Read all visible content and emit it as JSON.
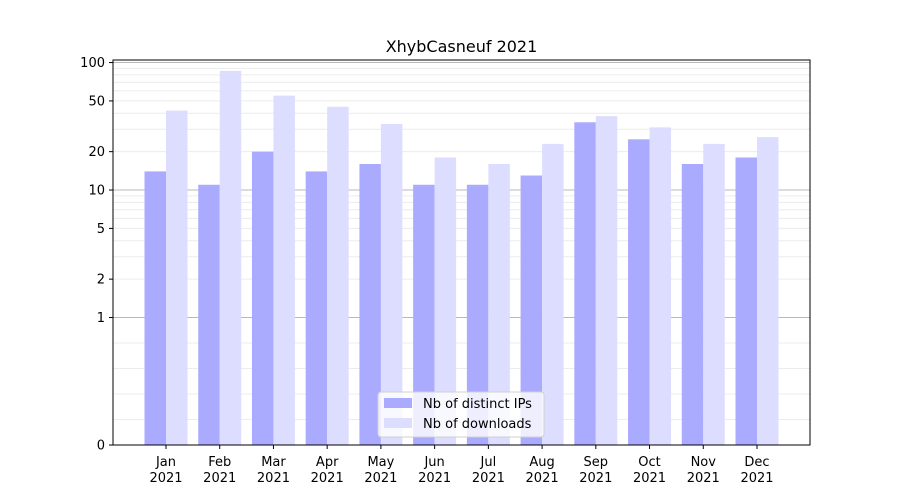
{
  "chart_data": {
    "type": "bar",
    "title": "XhybCasneuf 2021",
    "xlabel": "",
    "ylabel": "",
    "y_scale": "symlog",
    "ylim": [
      0,
      100
    ],
    "y_ticks": [
      0,
      1,
      2,
      5,
      10,
      20,
      50,
      100
    ],
    "grid": "horizontal",
    "legend_position": "bottom-center",
    "categories": [
      {
        "month": "Jan",
        "year": "2021"
      },
      {
        "month": "Feb",
        "year": "2021"
      },
      {
        "month": "Mar",
        "year": "2021"
      },
      {
        "month": "Apr",
        "year": "2021"
      },
      {
        "month": "May",
        "year": "2021"
      },
      {
        "month": "Jun",
        "year": "2021"
      },
      {
        "month": "Jul",
        "year": "2021"
      },
      {
        "month": "Aug",
        "year": "2021"
      },
      {
        "month": "Sep",
        "year": "2021"
      },
      {
        "month": "Oct",
        "year": "2021"
      },
      {
        "month": "Nov",
        "year": "2021"
      },
      {
        "month": "Dec",
        "year": "2021"
      }
    ],
    "series": [
      {
        "name": "Nb of distinct IPs",
        "color": "#aaaaff",
        "values": [
          14,
          11,
          20,
          14,
          16,
          11,
          11,
          13,
          34,
          25,
          16,
          18
        ]
      },
      {
        "name": "Nb of downloads",
        "color": "#ddddff",
        "values": [
          42,
          86,
          55,
          45,
          33,
          18,
          16,
          23,
          38,
          31,
          23,
          26
        ]
      }
    ]
  }
}
